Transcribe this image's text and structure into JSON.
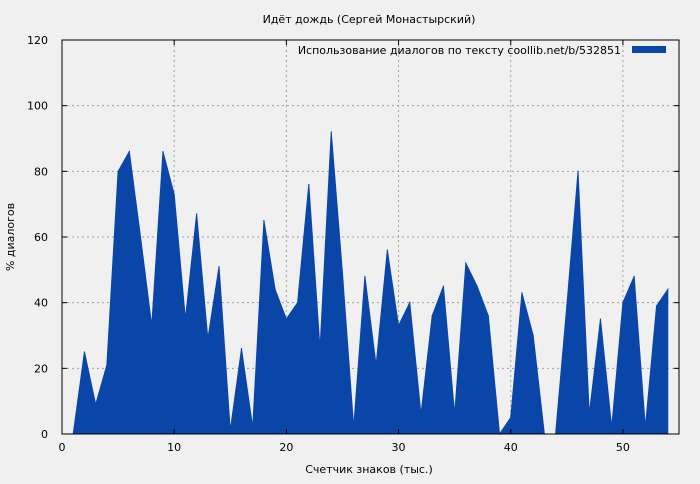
{
  "chart_data": {
    "type": "area",
    "title": "Идёт дождь (Сергей Монастырский)",
    "xlabel": "Счетчик знаков (тыс.)",
    "ylabel": "% диалогов",
    "xlim": [
      0,
      55
    ],
    "ylim": [
      0,
      120
    ],
    "xticks": [
      "0",
      "10",
      "20",
      "30",
      "40",
      "50"
    ],
    "yticks": [
      "0",
      "20",
      "40",
      "60",
      "80",
      "100",
      "120"
    ],
    "grid": true,
    "legend_position": "top-right",
    "colors": {
      "series": "#0a45a8",
      "background": "#f0f0f0",
      "grid": "#a0a0a0"
    },
    "series": [
      {
        "name": "Использование диалогов по тексту  coollib.net/b/532851",
        "x": [
          0,
          1,
          2,
          3,
          4,
          5,
          6,
          7,
          8,
          9,
          10,
          11,
          12,
          13,
          14,
          15,
          16,
          17,
          18,
          19,
          20,
          21,
          22,
          23,
          24,
          25,
          26,
          27,
          28,
          29,
          30,
          31,
          32,
          33,
          34,
          35,
          36,
          37,
          38,
          39,
          40,
          41,
          42,
          43,
          44,
          45,
          46,
          47,
          48,
          49,
          50,
          51,
          52,
          53,
          54
        ],
        "values": [
          0,
          0,
          25,
          9,
          21,
          80,
          86,
          60,
          33,
          86,
          73,
          35,
          67,
          29,
          51,
          1,
          26,
          2,
          65,
          44,
          35,
          40,
          76,
          26,
          92,
          49,
          2,
          48,
          21,
          56,
          33,
          40,
          6,
          36,
          45,
          6,
          52,
          45,
          36,
          0,
          5,
          43,
          30,
          0,
          0,
          39,
          80,
          6,
          35,
          2,
          40,
          48,
          2,
          39,
          44
        ]
      }
    ]
  }
}
